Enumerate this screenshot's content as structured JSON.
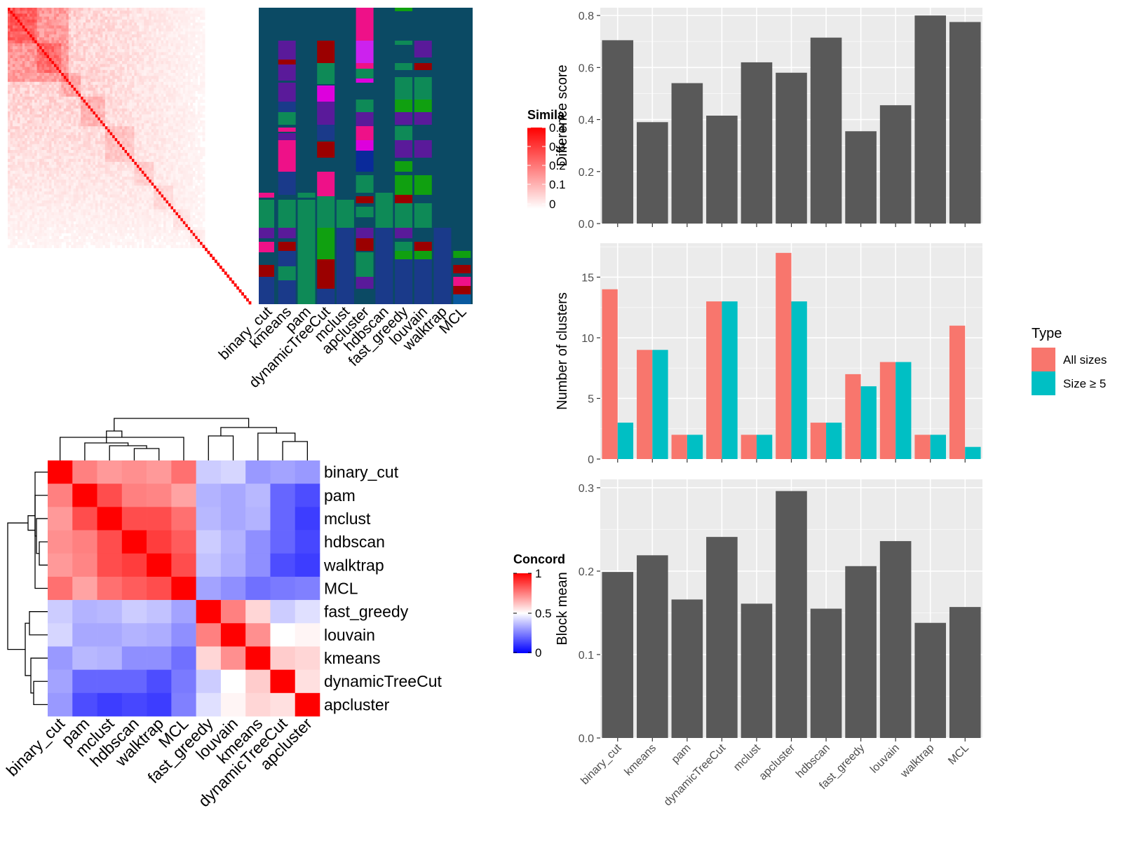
{
  "similarity_legend": {
    "title": "Simila",
    "ticks": [
      "0.4",
      "0.3",
      "0.2",
      "0.1",
      "0"
    ],
    "colors": [
      "#ffffff",
      "#ff0000"
    ]
  },
  "concordance_legend": {
    "title": "Concord",
    "ticks": [
      "1",
      "0.5",
      "0"
    ],
    "colors": [
      "#0000ff",
      "#ffffff",
      "#ff0000"
    ]
  },
  "cluster_methods": [
    "binary_cut",
    "kmeans",
    "pam",
    "dynamicTreeCut",
    "mclust",
    "apcluster",
    "hdbscan",
    "fast_greedy",
    "louvain",
    "walktrap",
    "MCL"
  ],
  "chart_data": [
    {
      "type": "heatmap",
      "name_hint": "similarity_matrix",
      "value_range": [
        0,
        0.4
      ],
      "n": 100
    },
    {
      "type": "heatmap",
      "name_hint": "cluster_assignment_matrix",
      "columns": [
        "binary_cut",
        "kmeans",
        "pam",
        "dynamicTreeCut",
        "mclust",
        "apcluster",
        "hdbscan",
        "fast_greedy",
        "louvain",
        "walktrap",
        "MCL"
      ]
    },
    {
      "type": "heatmap",
      "name_hint": "concordance_matrix",
      "rows": [
        "binary_cut",
        "pam",
        "mclust",
        "hdbscan",
        "walktrap",
        "MCL",
        "fast_greedy",
        "louvain",
        "kmeans",
        "dynamicTreeCut",
        "apcluster"
      ],
      "columns": [
        "binary_cut",
        "pam",
        "mclust",
        "hdbscan",
        "walktrap",
        "MCL",
        "fast_greedy",
        "louvain",
        "kmeans",
        "dynamicTreeCut",
        "apcluster"
      ],
      "values": [
        [
          1.0,
          0.75,
          0.7,
          0.72,
          0.7,
          0.78,
          0.4,
          0.42,
          0.3,
          0.32,
          0.3
        ],
        [
          0.75,
          1.0,
          0.85,
          0.75,
          0.74,
          0.68,
          0.35,
          0.33,
          0.36,
          0.2,
          0.15
        ],
        [
          0.7,
          0.85,
          1.0,
          0.85,
          0.85,
          0.78,
          0.36,
          0.33,
          0.35,
          0.2,
          0.12
        ],
        [
          0.72,
          0.75,
          0.85,
          1.0,
          0.88,
          0.82,
          0.4,
          0.35,
          0.28,
          0.2,
          0.14
        ],
        [
          0.7,
          0.74,
          0.85,
          0.88,
          1.0,
          0.85,
          0.38,
          0.34,
          0.28,
          0.15,
          0.12
        ],
        [
          0.78,
          0.68,
          0.78,
          0.82,
          0.85,
          1.0,
          0.32,
          0.28,
          0.22,
          0.24,
          0.25
        ],
        [
          0.4,
          0.35,
          0.36,
          0.4,
          0.38,
          0.32,
          1.0,
          0.75,
          0.58,
          0.4,
          0.44
        ],
        [
          0.42,
          0.33,
          0.33,
          0.35,
          0.34,
          0.28,
          0.75,
          1.0,
          0.72,
          0.5,
          0.52
        ],
        [
          0.3,
          0.36,
          0.35,
          0.28,
          0.28,
          0.22,
          0.58,
          0.72,
          1.0,
          0.6,
          0.58
        ],
        [
          0.32,
          0.2,
          0.2,
          0.2,
          0.15,
          0.24,
          0.4,
          0.5,
          0.6,
          1.0,
          0.56
        ],
        [
          0.3,
          0.15,
          0.12,
          0.14,
          0.12,
          0.25,
          0.44,
          0.52,
          0.58,
          0.56,
          1.0
        ]
      ]
    },
    {
      "type": "bar",
      "categories": [
        "binary_cut",
        "kmeans",
        "pam",
        "dynamicTreeCut",
        "mclust",
        "apcluster",
        "hdbscan",
        "fast_greedy",
        "louvain",
        "walktrap",
        "MCL"
      ],
      "values": [
        0.705,
        0.39,
        0.54,
        0.415,
        0.62,
        0.58,
        0.715,
        0.355,
        0.455,
        0.8,
        0.775
      ],
      "ylabel": "Difference score",
      "ylim": [
        0,
        0.83
      ],
      "yticks": [
        "0.0",
        "0.2",
        "0.4",
        "0.6",
        "0.8"
      ],
      "ytick_values": [
        0,
        0.2,
        0.4,
        0.6,
        0.8
      ],
      "grid": true,
      "bar_color": "#595959"
    },
    {
      "type": "bar",
      "categories": [
        "binary_cut",
        "kmeans",
        "pam",
        "dynamicTreeCut",
        "mclust",
        "apcluster",
        "hdbscan",
        "fast_greedy",
        "louvain",
        "walktrap",
        "MCL"
      ],
      "series": [
        {
          "name": "All sizes",
          "values": [
            14,
            9,
            2,
            13,
            2,
            17,
            3,
            7,
            8,
            2,
            11
          ],
          "color": "#F8766D"
        },
        {
          "name": "Size ≥ 5",
          "values": [
            3,
            9,
            2,
            13,
            2,
            13,
            3,
            6,
            8,
            2,
            1
          ],
          "color": "#00BFC4"
        }
      ],
      "ylabel": "Number of clusters",
      "ylim": [
        0,
        17.8
      ],
      "yticks": [
        "0",
        "5",
        "10",
        "15"
      ],
      "ytick_values": [
        0,
        5,
        10,
        15
      ],
      "legend": {
        "title": "Type",
        "position": "right"
      },
      "grid": true
    },
    {
      "type": "bar",
      "categories": [
        "binary_cut",
        "kmeans",
        "pam",
        "dynamicTreeCut",
        "mclust",
        "apcluster",
        "hdbscan",
        "fast_greedy",
        "louvain",
        "walktrap",
        "MCL"
      ],
      "values": [
        0.199,
        0.219,
        0.166,
        0.241,
        0.161,
        0.296,
        0.155,
        0.206,
        0.236,
        0.138,
        0.157
      ],
      "ylabel": "Block mean",
      "ylim": [
        0,
        0.31
      ],
      "yticks": [
        "0.0",
        "0.1",
        "0.2",
        "0.3"
      ],
      "ytick_values": [
        0,
        0.1,
        0.2,
        0.3
      ],
      "grid": true,
      "bar_color": "#595959"
    }
  ]
}
